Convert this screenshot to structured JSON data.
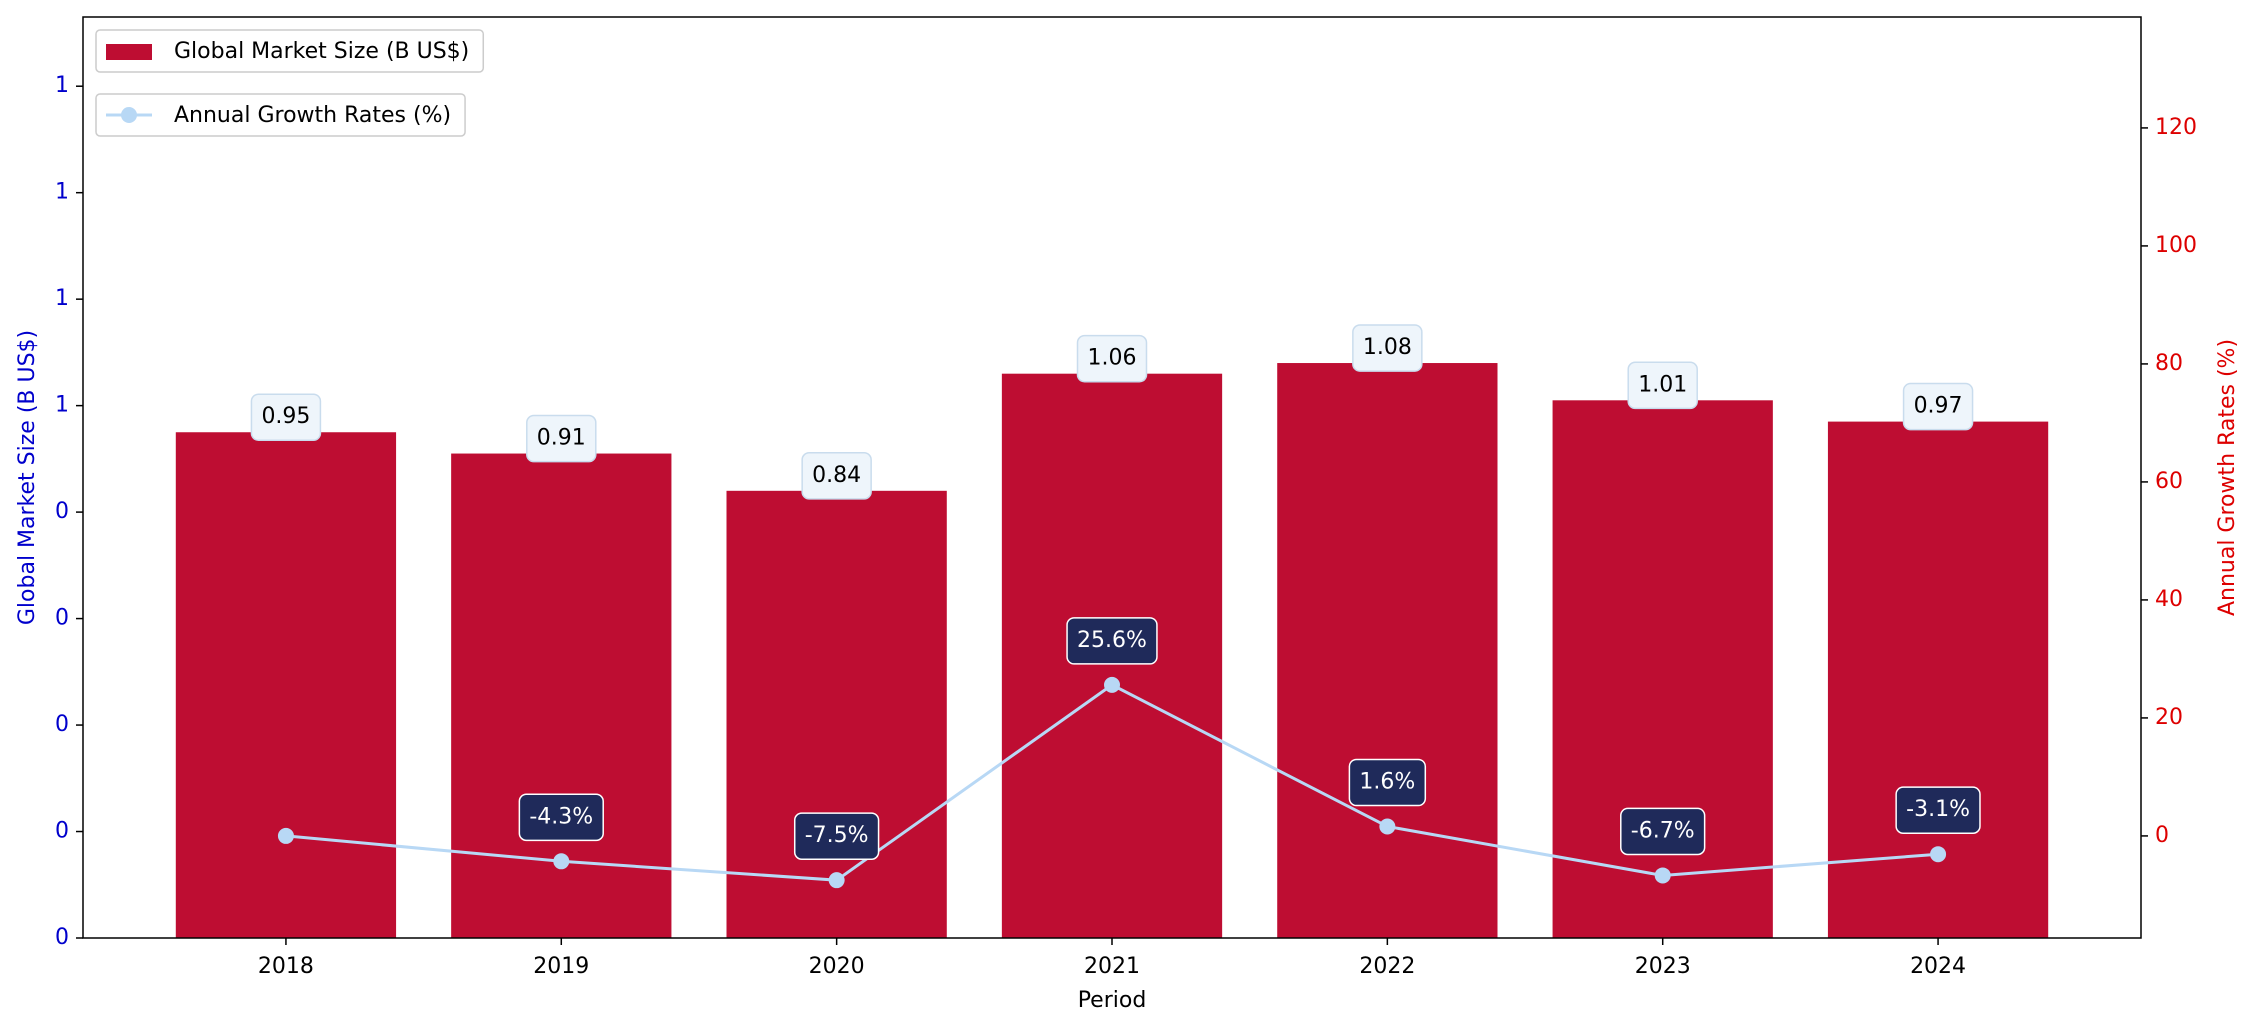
{
  "chart_data": {
    "type": "bar",
    "categories": [
      "2018",
      "2019",
      "2020",
      "2021",
      "2022",
      "2023",
      "2024"
    ],
    "x_label": "Period",
    "y_label": "Global Market Size (B US$)",
    "y2_label": "Annual Growth Rates (%)",
    "series": [
      {
        "name": "Global Market Size (B US$)",
        "type": "bar",
        "color": "#be0d32",
        "values": [
          0.95,
          0.91,
          0.84,
          1.06,
          1.08,
          1.01,
          0.97
        ]
      },
      {
        "name": "Annual Growth Rates (%)",
        "type": "line",
        "axis": "y2",
        "color": "#b8d8f5",
        "values": [
          0,
          -4.3,
          -7.5,
          25.6,
          1.6,
          -6.7,
          -3.1
        ],
        "value_labels": [
          null,
          "-4.3%",
          "-7.5%",
          "25.6%",
          "1.6%",
          "-6.7%",
          "-3.1%"
        ]
      }
    ],
    "ylim": [
      0,
      1.73
    ],
    "yticks": [
      {
        "value": 0,
        "label": "0"
      },
      {
        "value": 0.2,
        "label": "0"
      },
      {
        "value": 0.4,
        "label": "0"
      },
      {
        "value": 0.6,
        "label": "0"
      },
      {
        "value": 0.8,
        "label": "0"
      },
      {
        "value": 1.0,
        "label": "1"
      },
      {
        "value": 1.2,
        "label": "1"
      },
      {
        "value": 1.4,
        "label": "1"
      },
      {
        "value": 1.6,
        "label": "1"
      }
    ],
    "y_color": "#0000cc",
    "y2lim": [
      -17.3,
      138.8
    ],
    "y2ticks": [
      0,
      20,
      40,
      60,
      80,
      100,
      120
    ],
    "y2_color": "#dd0000",
    "legend": "upper left"
  }
}
